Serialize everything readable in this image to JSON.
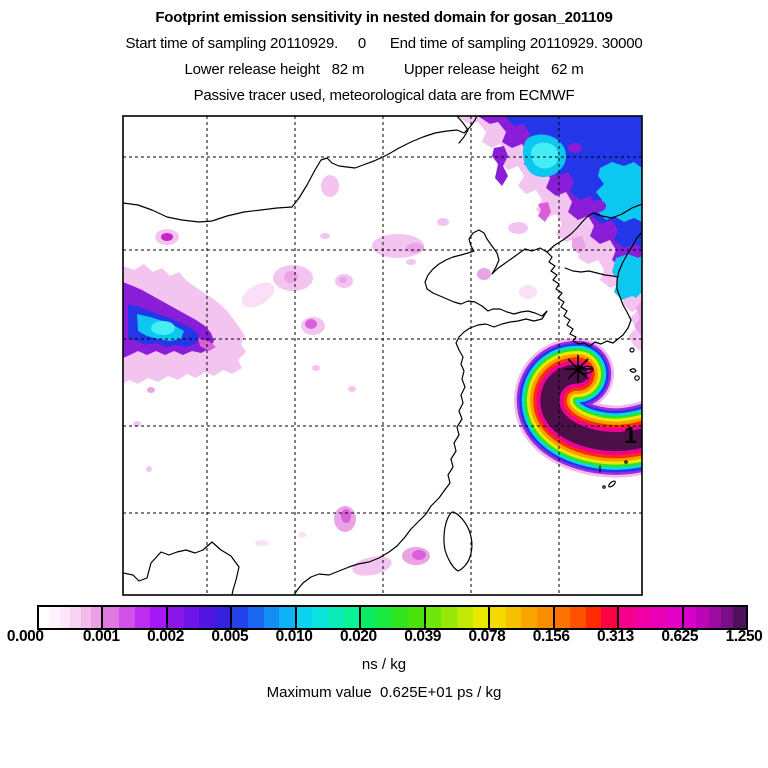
{
  "header": {
    "title": "Footprint emission sensitivity in nested domain for gosan_201109",
    "line2": "Start time of sampling 20110929.     0      End time of sampling 20110929. 30000",
    "line3": "Lower release height   82 m          Upper release height   62 m",
    "line4": "Passive tracer used, meteorological data are from ECMWF"
  },
  "map": {
    "receptor_label": "1",
    "receptor_site": "Gosan (star marker on Jeju)",
    "plume_rings": [
      {
        "color": "#f2b8ee",
        "width": 72
      },
      {
        "color": "#992be0",
        "width": 66.5
      },
      {
        "color": "#2437e8",
        "width": 61.5
      },
      {
        "color": "#0ad4f2",
        "width": 56.5
      },
      {
        "color": "#28e724",
        "width": 51.5
      },
      {
        "color": "#ece900",
        "width": 46
      },
      {
        "color": "#f99e00",
        "width": 40
      },
      {
        "color": "#fd2e00",
        "width": 33.5
      },
      {
        "color": "#ee0098",
        "width": 27
      },
      {
        "color": "#4b1048",
        "width": 19
      }
    ],
    "palette": {
      "paleFringe": "#f9e0f7",
      "palePink": "#f4c4f0",
      "lightMagenta": "#eaa4e6",
      "magenta": "#d960d9",
      "brightMagenta": "#c524c8",
      "purple": "#8a1ed8",
      "blue": "#2336e8",
      "cyan": "#0cc8f0",
      "brightCyan": "#45eef5",
      "coast": "#000000",
      "grid": "#000000"
    }
  },
  "colorbar": {
    "unit": "ns / kg",
    "tick_labels": [
      "0.000",
      "0.001",
      "0.002",
      "0.005",
      "0.010",
      "0.020",
      "0.039",
      "0.078",
      "0.156",
      "0.313",
      "0.625",
      "1.250"
    ],
    "segments": [
      [
        "#ffffff",
        "#fef4fd",
        "#fbe6fa",
        "#f7d3f3",
        "#f1bcec",
        "#eaa0e4"
      ],
      [
        "#e07ae0",
        "#d152e8",
        "#bd2ef2",
        "#a318f5"
      ],
      [
        "#8a17e8",
        "#6e14e6",
        "#5215e2",
        "#3422dd"
      ],
      [
        "#2442ea",
        "#1a68f0",
        "#148ef4",
        "#0fb2f6"
      ],
      [
        "#0cd2f2",
        "#0ae2dc",
        "#09ecb8",
        "#0af295"
      ],
      [
        "#0deb62",
        "#1ce83e",
        "#30e51f",
        "#4ce30c"
      ],
      [
        "#6ee80a",
        "#96e806",
        "#c0e903",
        "#e8e900"
      ],
      [
        "#f4da00",
        "#f7c000",
        "#f9a700",
        "#fb8d00"
      ],
      [
        "#fc7300",
        "#fd5200",
        "#fe2a00",
        "#fb0343"
      ],
      [
        "#f6008b",
        "#f000a2",
        "#e900b5",
        "#e200c5"
      ],
      [
        "#d800c9",
        "#bb05b6",
        "#9c0aa0",
        "#7b0e86",
        "#4f105c"
      ]
    ]
  },
  "footer": {
    "unit": "ns / kg",
    "max_value": "Maximum value  0.625E+01 ps / kg"
  },
  "chart_data": {
    "type": "heatmap",
    "title": "Footprint emission sensitivity in nested domain for gosan_201109",
    "site": "gosan_201109",
    "sampling_start": "20110929. 0",
    "sampling_end": "20110929. 30000",
    "lower_release_height_m": 82,
    "upper_release_height_m": 62,
    "tracer_note": "Passive tracer used, meteorological data are from ECMWF",
    "colorbar_unit": "ns / kg",
    "colorbar_ticks": [
      0.0,
      0.001,
      0.002,
      0.005,
      0.01,
      0.02,
      0.039,
      0.078,
      0.156,
      0.313,
      0.625,
      1.25
    ],
    "maximum_value_text": "Maximum value  0.625E+01 ps / kg",
    "maximum_value_ps_per_kg": 6.25,
    "receptor": {
      "marker": "star",
      "label": "1",
      "location": "Gosan, Jeju Island"
    },
    "grid": {
      "vertical_lines": 5,
      "horizontal_lines": 5,
      "style": "dashed"
    },
    "features": [
      {
        "region": "northeast corner of domain (NE China / Russian Far East)",
        "description": "large high-sensitivity area, purple-blue with cyan cores",
        "approx_range_ns_per_kg": "0.002 - 0.020"
      },
      {
        "region": "west-central domain",
        "description": "compact hotspot with cyan core and purple fringe",
        "approx_range_ns_per_kg": "0.002 - 0.020"
      },
      {
        "region": "around receptor at Gosan (Jeju), curving southeast off the domain edge",
        "description": "crescent-shaped plume with full rainbow rings and dark core",
        "approx_range_ns_per_kg": "0.001 - 1.250 (core > 0.625)"
      },
      {
        "region": "scattered over central and southern China",
        "description": "weak pale-magenta patches",
        "approx_range_ns_per_kg": "< 0.002"
      }
    ]
  }
}
